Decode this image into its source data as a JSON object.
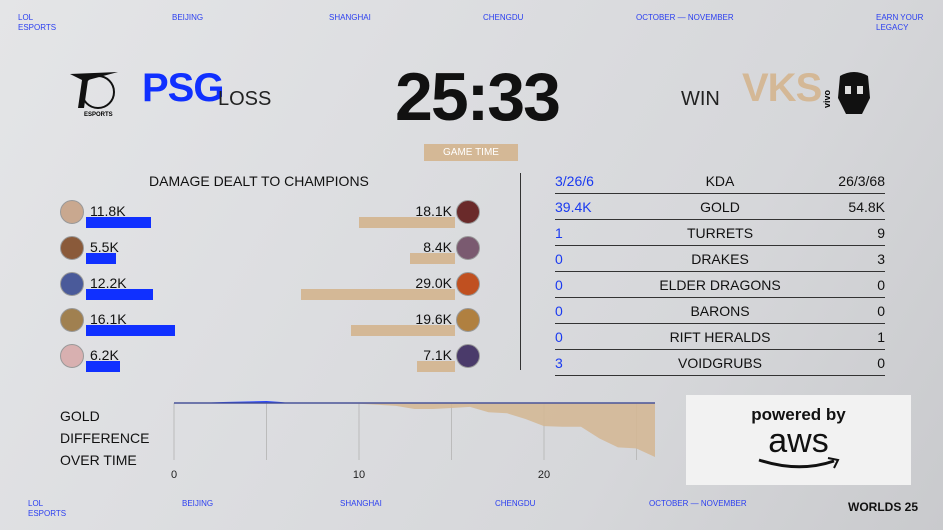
{
  "nav_top": [
    "LOL\nESPORTS",
    "BEIJING",
    "SHANGHAI",
    "CHENGDU",
    "OCTOBER — NOVEMBER",
    "EARN YOUR\nLEGACY"
  ],
  "nav_bottom": [
    "LOL\nESPORTS",
    "BEIJING",
    "SHANGHAI",
    "CHENGDU",
    "OCTOBER — NOVEMBER"
  ],
  "worlds_logo": "WORLDS 25",
  "left_team": {
    "name": "PSG",
    "result": "LOSS",
    "logo_text": "ESPORTS",
    "color": "#1030ff"
  },
  "right_team": {
    "name": "VKS",
    "result": "WIN",
    "logo_text": "vivo",
    "color": "#d4b896"
  },
  "timer": "25:33",
  "game_time_label": "GAME TIME",
  "damage": {
    "title": "DAMAGE DEALT TO CHAMPIONS",
    "left": [
      {
        "label": "11.8K",
        "value": 11.8
      },
      {
        "label": "5.5K",
        "value": 5.5
      },
      {
        "label": "12.2K",
        "value": 12.2
      },
      {
        "label": "16.1K",
        "value": 16.1
      },
      {
        "label": "6.2K",
        "value": 6.2
      }
    ],
    "right": [
      {
        "label": "18.1K",
        "value": 18.1
      },
      {
        "label": "8.4K",
        "value": 8.4
      },
      {
        "label": "29.0K",
        "value": 29.0
      },
      {
        "label": "19.6K",
        "value": 19.6
      },
      {
        "label": "7.1K",
        "value": 7.1
      }
    ]
  },
  "stats": [
    {
      "label": "KDA",
      "left": "3/26/6",
      "right": "26/3/68"
    },
    {
      "label": "GOLD",
      "left": "39.4K",
      "right": "54.8K"
    },
    {
      "label": "TURRETS",
      "left": "1",
      "right": "9"
    },
    {
      "label": "DRAKES",
      "left": "0",
      "right": "3"
    },
    {
      "label": "ELDER DRAGONS",
      "left": "0",
      "right": "0"
    },
    {
      "label": "BARONS",
      "left": "0",
      "right": "0"
    },
    {
      "label": "RIFT HERALDS",
      "left": "0",
      "right": "1"
    },
    {
      "label": "VOIDGRUBS",
      "left": "3",
      "right": "0"
    }
  ],
  "gold_label": [
    "GOLD",
    "DIFFERENCE",
    "OVER TIME"
  ],
  "chart_data": {
    "type": "area",
    "xlabel": "",
    "ylabel": "",
    "x_ticks": [
      "0",
      "10",
      "20"
    ],
    "xlim": [
      0,
      26
    ],
    "x": [
      0,
      2,
      3,
      5,
      6,
      8,
      10,
      12,
      13,
      14,
      15,
      16,
      17,
      18,
      19,
      20,
      21,
      22,
      23,
      24,
      25,
      25.5,
      26
    ],
    "y": [
      0,
      0,
      0.1,
      0.3,
      0,
      -0.1,
      -0.2,
      -0.8,
      -1.7,
      -1.7,
      -1.4,
      -1.1,
      -2.6,
      -2.9,
      -4.5,
      -6.5,
      -6.7,
      -6.7,
      -10,
      -12.5,
      -12.8,
      -14,
      -15.2
    ],
    "units": "gold (K, estimated)",
    "positive_color": "#1030ff",
    "negative_color": "#d4b896"
  },
  "sponsor": {
    "line1": "powered by",
    "line2": "aws"
  }
}
